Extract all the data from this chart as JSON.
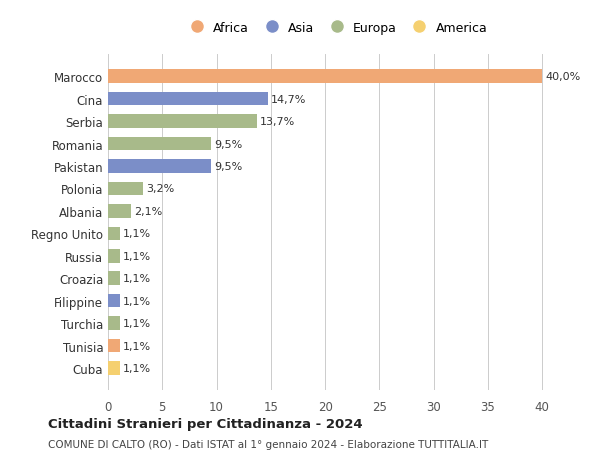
{
  "countries": [
    "Marocco",
    "Cina",
    "Serbia",
    "Romania",
    "Pakistan",
    "Polonia",
    "Albania",
    "Regno Unito",
    "Russia",
    "Croazia",
    "Filippine",
    "Turchia",
    "Tunisia",
    "Cuba"
  ],
  "values": [
    40.0,
    14.7,
    13.7,
    9.5,
    9.5,
    3.2,
    2.1,
    1.1,
    1.1,
    1.1,
    1.1,
    1.1,
    1.1,
    1.1
  ],
  "labels": [
    "40,0%",
    "14,7%",
    "13,7%",
    "9,5%",
    "9,5%",
    "3,2%",
    "2,1%",
    "1,1%",
    "1,1%",
    "1,1%",
    "1,1%",
    "1,1%",
    "1,1%",
    "1,1%"
  ],
  "continents": [
    "Africa",
    "Asia",
    "Europa",
    "Europa",
    "Asia",
    "Europa",
    "Europa",
    "Europa",
    "Europa",
    "Europa",
    "Asia",
    "Europa",
    "Africa",
    "America"
  ],
  "continent_colors": {
    "Africa": "#F0A875",
    "Asia": "#7B8EC8",
    "Europa": "#A8BA8A",
    "America": "#F5D070"
  },
  "legend_order": [
    "Africa",
    "Asia",
    "Europa",
    "America"
  ],
  "title": "Cittadini Stranieri per Cittadinanza - 2024",
  "subtitle": "COMUNE DI CALTO (RO) - Dati ISTAT al 1° gennaio 2024 - Elaborazione TUTTITALIA.IT",
  "xlim": [
    0,
    42
  ],
  "xticks": [
    0,
    5,
    10,
    15,
    20,
    25,
    30,
    35,
    40
  ],
  "bg_color": "#ffffff",
  "grid_color": "#cccccc",
  "bar_height": 0.6
}
